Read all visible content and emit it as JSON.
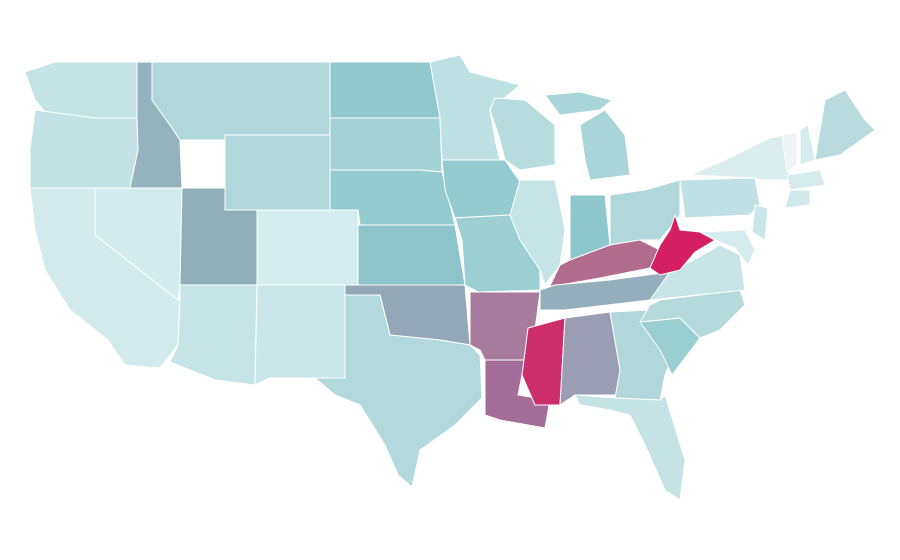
{
  "map": {
    "regions": [
      {
        "fill": "#c4e3e5"
      },
      {
        "fill": "#c2e2e4"
      },
      {
        "fill": "#d2eaec"
      },
      {
        "fill": "#d4ebed"
      },
      {
        "fill": "#94b3bd"
      },
      {
        "fill": "#b0d8da"
      },
      {
        "fill": "#b0d7d9"
      },
      {
        "fill": "#91afb9"
      },
      {
        "fill": "#d5ecee"
      },
      {
        "fill": "#c6e3e5"
      },
      {
        "fill": "#cbe6e8"
      },
      {
        "fill": "#91c9cc"
      },
      {
        "fill": "#a3d2d4"
      },
      {
        "fill": "#94cbce"
      },
      {
        "fill": "#8cc4c9"
      },
      {
        "fill": "#94a7b6"
      },
      {
        "fill": "#b2d9db"
      },
      {
        "fill": "#bde0e2"
      },
      {
        "fill": "#94cbce"
      },
      {
        "fill": "#9ccfd1"
      },
      {
        "fill": "#a87b9c"
      },
      {
        "fill": "#a46d97"
      },
      {
        "fill": "#b6dcde"
      },
      {
        "fill": "#c6e4e6"
      },
      {
        "fill": "#a8d5d7"
      },
      {
        "fill": "#a8d5d7"
      },
      {
        "fill": "#8ec8cc"
      },
      {
        "fill": "#b0d8da"
      },
      {
        "fill": "#b06b8d"
      },
      {
        "fill": "#95aebb"
      },
      {
        "fill": "#cc2e6b"
      },
      {
        "fill": "#9b9eb3"
      },
      {
        "fill": "#b0d8da"
      },
      {
        "fill": "#c5e3e5"
      },
      {
        "fill": "#9acfd1"
      },
      {
        "fill": "#b4dadc"
      },
      {
        "fill": "#c8e4e6"
      },
      {
        "fill": "#d51f63"
      },
      {
        "fill": "#bfe1e3"
      },
      {
        "fill": "#dcedef"
      },
      {
        "fill": "#eef4f6"
      },
      {
        "fill": "#d6ebed"
      },
      {
        "fill": "#b8dcde"
      },
      {
        "fill": "#d6ebed"
      },
      {
        "fill": "#d2e9eb"
      },
      {
        "fill": "#cbe6e8"
      },
      {
        "fill": "#d6ebed"
      }
    ]
  }
}
